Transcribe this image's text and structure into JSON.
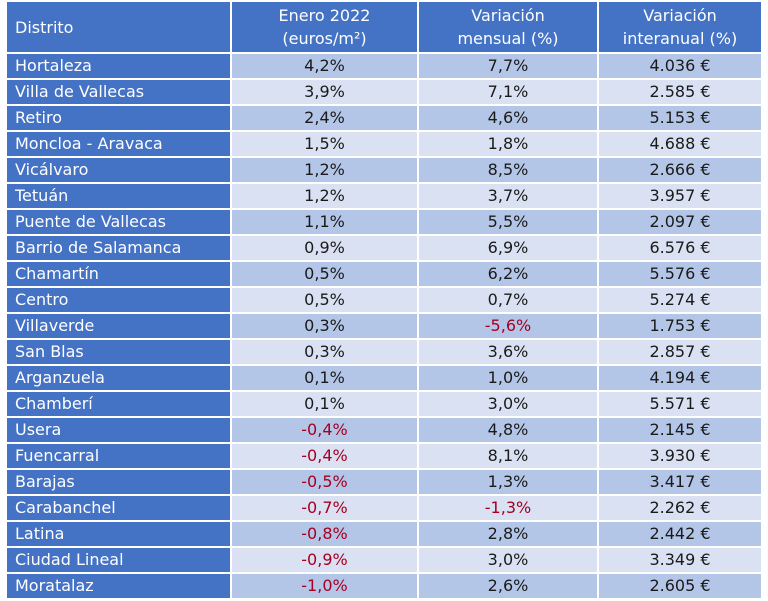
{
  "table": {
    "headers": [
      {
        "line1": "Distrito",
        "line2": ""
      },
      {
        "line1": "Enero 2022",
        "line2": "(euros/m²)"
      },
      {
        "line1": "Variación",
        "line2": "mensual (%)"
      },
      {
        "line1": "Variación",
        "line2": "interanual (%)"
      }
    ],
    "rows": [
      {
        "distrito": "Hortaleza",
        "enero": "4,2%",
        "mensual": "7,7%",
        "interanual": "4.036 €"
      },
      {
        "distrito": "Villa de Vallecas",
        "enero": "3,9%",
        "mensual": "7,1%",
        "interanual": "2.585 €"
      },
      {
        "distrito": "Retiro",
        "enero": "2,4%",
        "mensual": "4,6%",
        "interanual": "5.153 €"
      },
      {
        "distrito": "Moncloa - Aravaca",
        "enero": "1,5%",
        "mensual": "1,8%",
        "interanual": "4.688 €"
      },
      {
        "distrito": "Vicálvaro",
        "enero": "1,2%",
        "mensual": "8,5%",
        "interanual": "2.666 €"
      },
      {
        "distrito": "Tetuán",
        "enero": "1,2%",
        "mensual": "3,7%",
        "interanual": "3.957 €"
      },
      {
        "distrito": "Puente de Vallecas",
        "enero": "1,1%",
        "mensual": "5,5%",
        "interanual": "2.097 €"
      },
      {
        "distrito": "Barrio de Salamanca",
        "enero": "0,9%",
        "mensual": "6,9%",
        "interanual": "6.576 €"
      },
      {
        "distrito": "Chamartín",
        "enero": "0,5%",
        "mensual": "6,2%",
        "interanual": "5.576 €"
      },
      {
        "distrito": "Centro",
        "enero": "0,5%",
        "mensual": "0,7%",
        "interanual": "5.274 €"
      },
      {
        "distrito": "Villaverde",
        "enero": "0,3%",
        "mensual": "-5,6%",
        "interanual": "1.753 €"
      },
      {
        "distrito": "San Blas",
        "enero": "0,3%",
        "mensual": "3,6%",
        "interanual": "2.857 €"
      },
      {
        "distrito": "Arganzuela",
        "enero": "0,1%",
        "mensual": "1,0%",
        "interanual": "4.194 €"
      },
      {
        "distrito": "Chamberí",
        "enero": "0,1%",
        "mensual": "3,0%",
        "interanual": "5.571 €"
      },
      {
        "distrito": "Usera",
        "enero": "-0,4%",
        "mensual": "4,8%",
        "interanual": "2.145 €"
      },
      {
        "distrito": "Fuencarral",
        "enero": "-0,4%",
        "mensual": "8,1%",
        "interanual": "3.930 €"
      },
      {
        "distrito": "Barajas",
        "enero": "-0,5%",
        "mensual": "1,3%",
        "interanual": "3.417 €"
      },
      {
        "distrito": "Carabanchel",
        "enero": "-0,7%",
        "mensual": "-1,3%",
        "interanual": "2.262 €"
      },
      {
        "distrito": "Latina",
        "enero": "-0,8%",
        "mensual": "2,8%",
        "interanual": "2.442 €"
      },
      {
        "distrito": "Ciudad Lineal",
        "enero": "-0,9%",
        "mensual": "3,0%",
        "interanual": "3.349 €"
      },
      {
        "distrito": "Moratalaz",
        "enero": "-1,0%",
        "mensual": "2,6%",
        "interanual": "2.605 €"
      }
    ]
  },
  "colors": {
    "header_bg": "#4472c4",
    "row_odd": "#b4c6e7",
    "row_even": "#d9e1f2",
    "negative": "#a50021"
  }
}
